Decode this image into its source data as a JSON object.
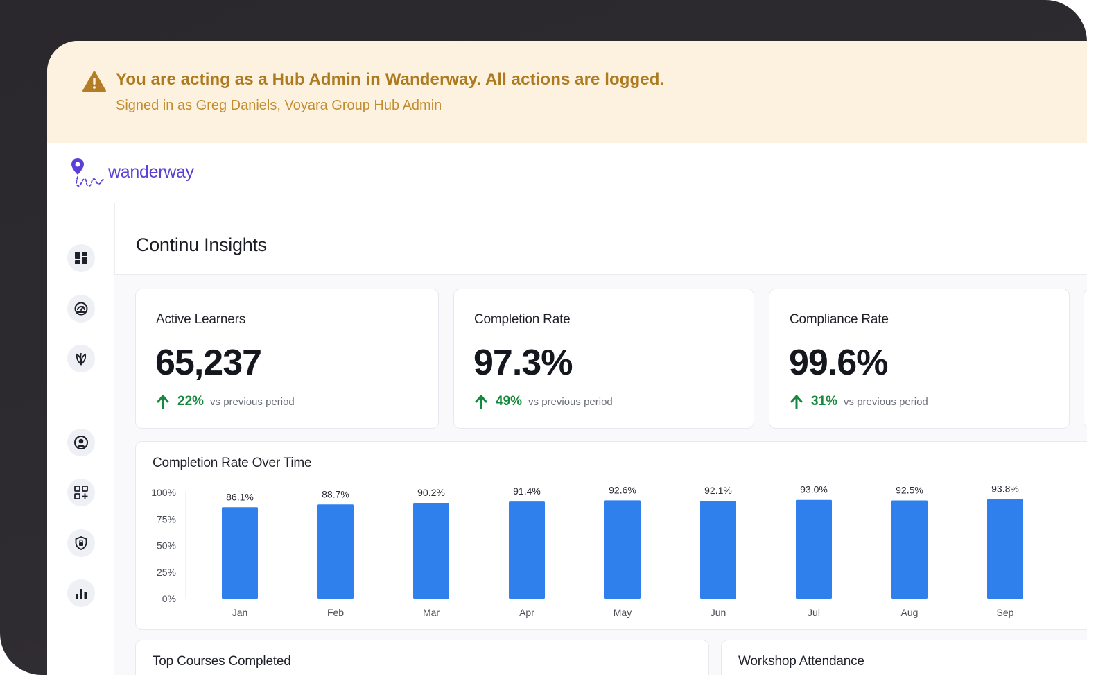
{
  "banner": {
    "title": "You are acting as a Hub Admin in Wanderway. All actions are logged.",
    "subtitle": "Signed in as Greg Daniels, Voyara Group Hub Admin",
    "icon": "warning-triangle-icon",
    "bg_color": "#fdf1e0",
    "text_color": "#ad7a1f"
  },
  "brand": {
    "name": "wanderway",
    "color": "#5b3fd6"
  },
  "sidebar": {
    "top_items": [
      {
        "icon": "dashboard-icon"
      },
      {
        "icon": "speedometer-icon"
      },
      {
        "icon": "leaf-icon"
      }
    ],
    "bottom_items": [
      {
        "icon": "user-circle-icon"
      },
      {
        "icon": "apps-add-icon"
      },
      {
        "icon": "shield-lock-icon"
      },
      {
        "icon": "bar-chart-icon"
      }
    ]
  },
  "page": {
    "title": "Continu Insights"
  },
  "kpis": [
    {
      "label": "Active Learners",
      "value": "65,237",
      "delta": "22%",
      "vs": "vs previous period"
    },
    {
      "label": "Completion Rate",
      "value": "97.3%",
      "delta": "49%",
      "vs": "vs previous period"
    },
    {
      "label": "Compliance Rate",
      "value": "99.6%",
      "delta": "31%",
      "vs": "vs previous period"
    }
  ],
  "chart": {
    "title": "Completion Rate Over Time",
    "bar_color": "#2f80ed",
    "positive_color": "#17893d"
  },
  "chart_data": {
    "type": "bar",
    "title": "Completion Rate Over Time",
    "xlabel": "",
    "ylabel": "",
    "categories": [
      "Jan",
      "Feb",
      "Mar",
      "Apr",
      "May",
      "Jun",
      "Jul",
      "Aug",
      "Sep"
    ],
    "values": [
      86.1,
      88.7,
      90.2,
      91.4,
      92.6,
      92.1,
      93.0,
      92.5,
      93.8
    ],
    "labels": [
      "86.1%",
      "88.7%",
      "90.2%",
      "91.4%",
      "92.6%",
      "92.1%",
      "93.0%",
      "92.5%",
      "93.8%"
    ],
    "yticks": [
      "0%",
      "25%",
      "50%",
      "75%",
      "100%"
    ],
    "ylim": [
      0,
      100
    ],
    "grid": false,
    "legend": "none"
  },
  "sections": {
    "top_courses": "Top Courses Completed",
    "workshop": "Workshop Attendance"
  }
}
